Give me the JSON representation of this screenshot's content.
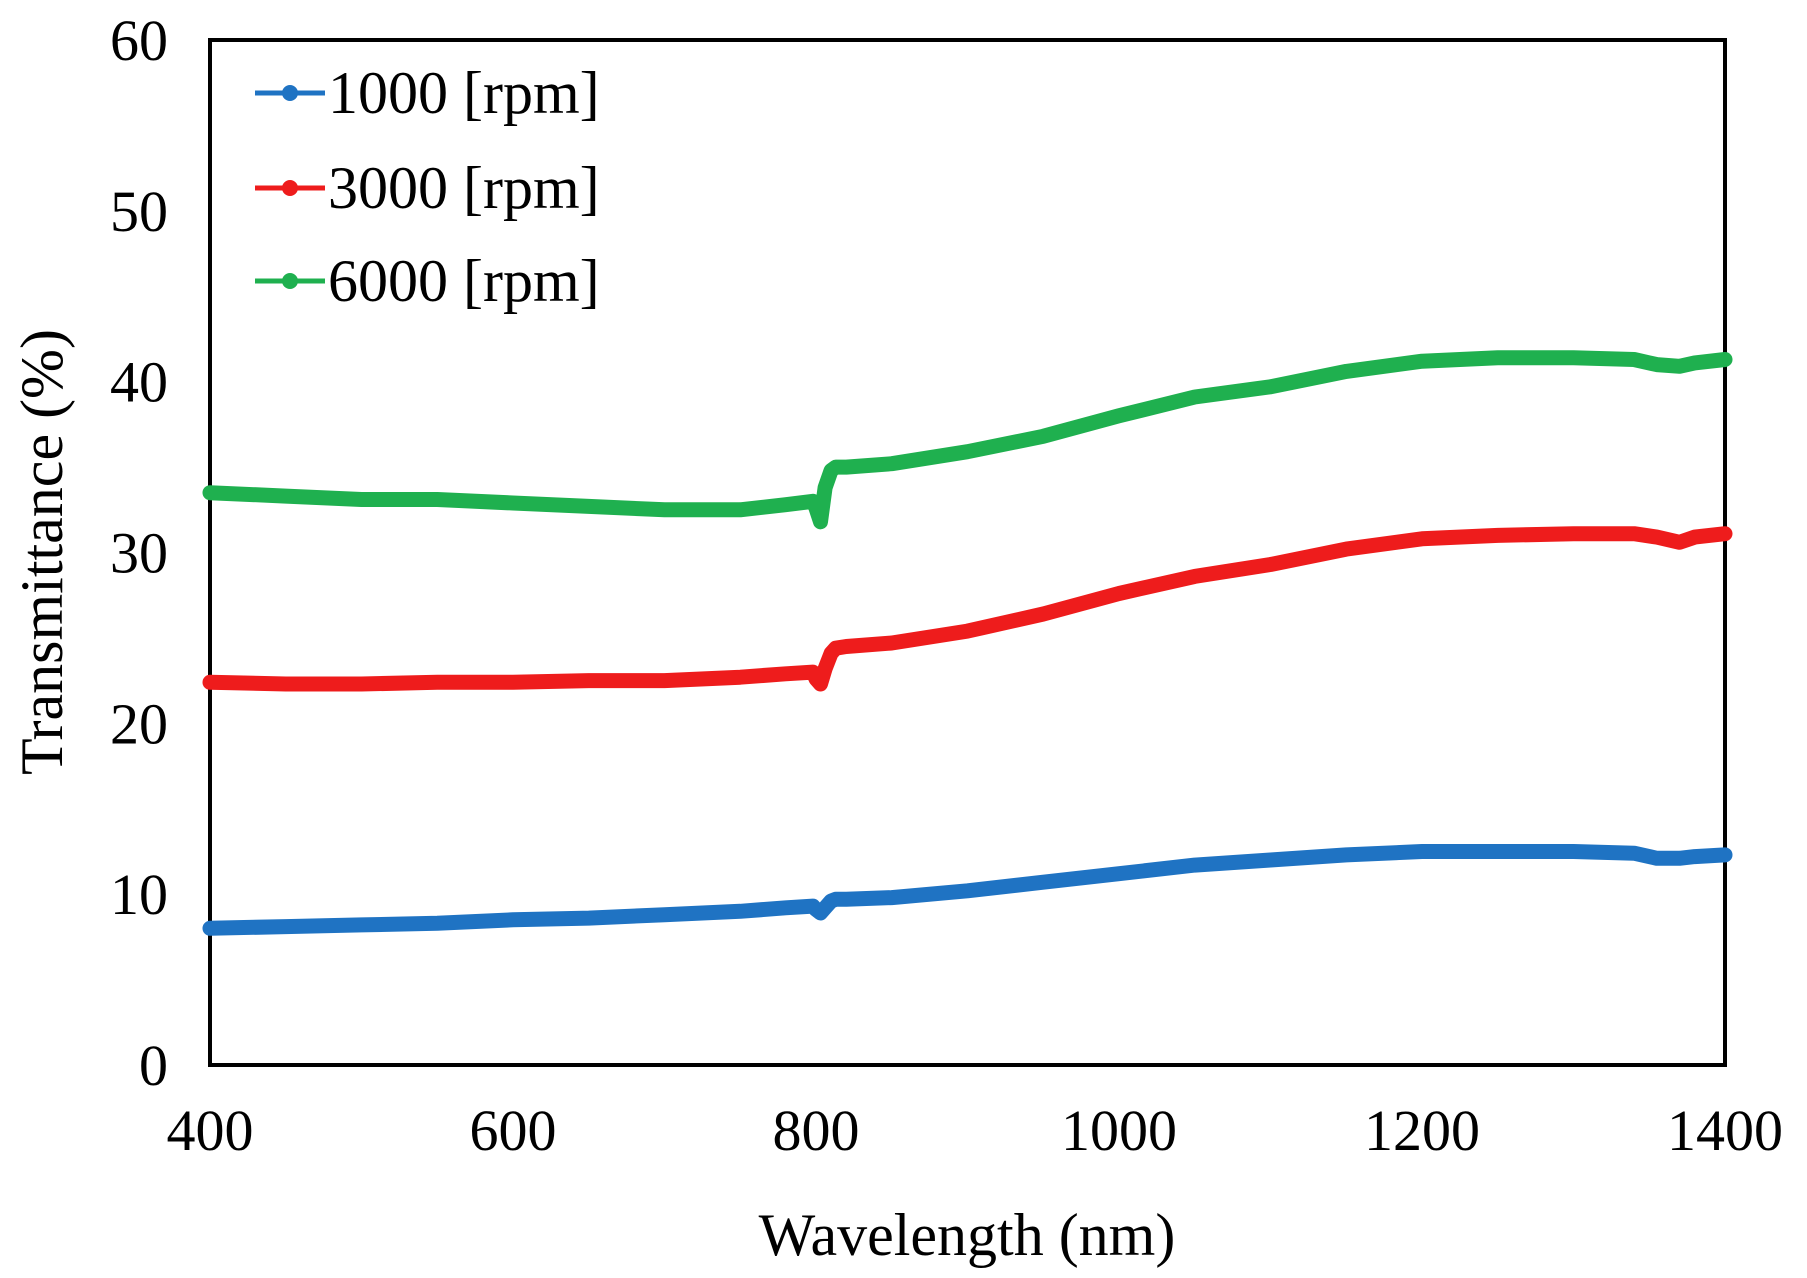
{
  "chart_data": {
    "type": "line",
    "title": "",
    "xlabel": "Wavelength (nm)",
    "ylabel": "Transmittance (%)",
    "xlim": [
      400,
      1400
    ],
    "ylim": [
      0,
      60
    ],
    "xticks": [
      400,
      600,
      800,
      1000,
      1200,
      1400
    ],
    "yticks": [
      0,
      10,
      20,
      30,
      40,
      50,
      60
    ],
    "grid": false,
    "legend_position": "top-left",
    "x": [
      400,
      450,
      500,
      550,
      600,
      650,
      700,
      750,
      780,
      798,
      800,
      803,
      806,
      810,
      813,
      820,
      850,
      900,
      950,
      1000,
      1050,
      1100,
      1150,
      1200,
      1250,
      1300,
      1340,
      1355,
      1370,
      1380,
      1400
    ],
    "series": [
      {
        "name": "1000 [rpm]",
        "color": "#1f73c3",
        "values": [
          8.0,
          8.1,
          8.2,
          8.3,
          8.5,
          8.6,
          8.8,
          9.0,
          9.2,
          9.3,
          9.1,
          8.9,
          9.2,
          9.6,
          9.7,
          9.7,
          9.8,
          10.2,
          10.7,
          11.2,
          11.7,
          12.0,
          12.3,
          12.5,
          12.5,
          12.5,
          12.4,
          12.1,
          12.1,
          12.2,
          12.3
        ]
      },
      {
        "name": "3000 [rpm]",
        "color": "#ee1c1c",
        "values": [
          22.4,
          22.3,
          22.3,
          22.4,
          22.4,
          22.5,
          22.5,
          22.7,
          22.9,
          23.0,
          22.6,
          22.3,
          23.2,
          24.1,
          24.4,
          24.5,
          24.7,
          25.4,
          26.4,
          27.6,
          28.6,
          29.3,
          30.2,
          30.8,
          31.0,
          31.1,
          31.1,
          30.9,
          30.6,
          30.9,
          31.1
        ]
      },
      {
        "name": "6000 [rpm]",
        "color": "#1fb04f",
        "values": [
          33.5,
          33.3,
          33.1,
          33.1,
          32.9,
          32.7,
          32.5,
          32.5,
          32.8,
          33.0,
          32.6,
          31.8,
          33.8,
          34.8,
          35.0,
          35.0,
          35.2,
          35.9,
          36.8,
          38.0,
          39.1,
          39.7,
          40.6,
          41.2,
          41.4,
          41.4,
          41.3,
          41.0,
          40.9,
          41.1,
          41.3
        ]
      }
    ]
  }
}
